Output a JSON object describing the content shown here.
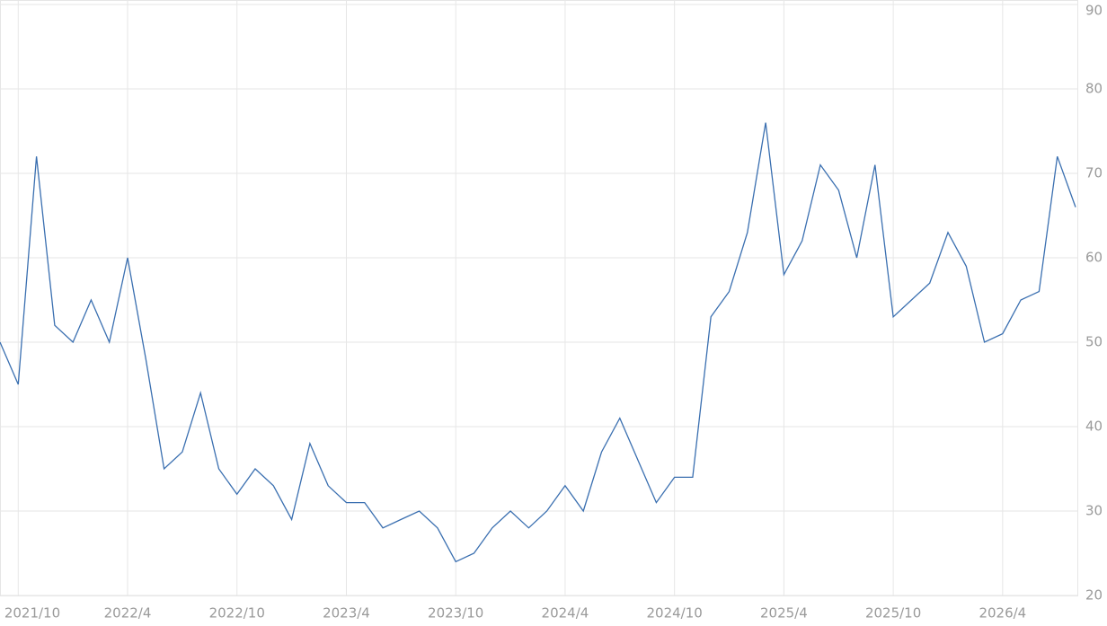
{
  "chart_data": {
    "type": "line",
    "x": [
      "2021/9",
      "2021/10",
      "2021/11",
      "2021/12",
      "2022/1",
      "2022/2",
      "2022/3",
      "2022/4",
      "2022/5",
      "2022/6",
      "2022/7",
      "2022/8",
      "2022/9",
      "2022/10",
      "2022/11",
      "2022/12",
      "2023/1",
      "2023/2",
      "2023/3",
      "2023/4",
      "2023/5",
      "2023/6",
      "2023/7",
      "2023/8",
      "2023/9",
      "2023/10",
      "2023/11",
      "2023/12",
      "2024/1",
      "2024/2",
      "2024/3",
      "2024/4",
      "2024/5",
      "2024/6",
      "2024/7",
      "2024/8",
      "2024/9",
      "2024/10",
      "2024/11",
      "2024/12",
      "2025/1",
      "2025/2",
      "2025/3",
      "2025/4",
      "2025/5",
      "2025/6",
      "2025/7",
      "2025/8",
      "2025/9",
      "2025/10",
      "2025/11",
      "2025/12",
      "2026/1",
      "2026/2",
      "2026/3",
      "2026/4",
      "2026/5",
      "2026/6",
      "2026/7",
      "2026/8"
    ],
    "series": [
      {
        "color": "#3a6fb0",
        "values": [
          50,
          45,
          72,
          52,
          50,
          55,
          50,
          60,
          48,
          35,
          37,
          44,
          35,
          32,
          35,
          33,
          29,
          38,
          33,
          31,
          31,
          28,
          29,
          30,
          28,
          24,
          25,
          28,
          30,
          28,
          30,
          33,
          30,
          37,
          41,
          36,
          31,
          34,
          34,
          53,
          56,
          63,
          76,
          58,
          62,
          71,
          68,
          60,
          71,
          53,
          55,
          57,
          63,
          59,
          50,
          51,
          55,
          56,
          72,
          66
        ]
      }
    ],
    "xlim": [
      "2021/9",
      "2026/8"
    ],
    "xticks": [
      "2021/10",
      "2022/4",
      "2022/10",
      "2023/4",
      "2023/10",
      "2024/4",
      "2024/10",
      "2025/4",
      "2025/10",
      "2026/4"
    ],
    "ylim": [
      20,
      90
    ],
    "yticks": [
      20,
      30,
      40,
      50,
      60,
      70,
      80,
      90
    ],
    "grid": true
  }
}
